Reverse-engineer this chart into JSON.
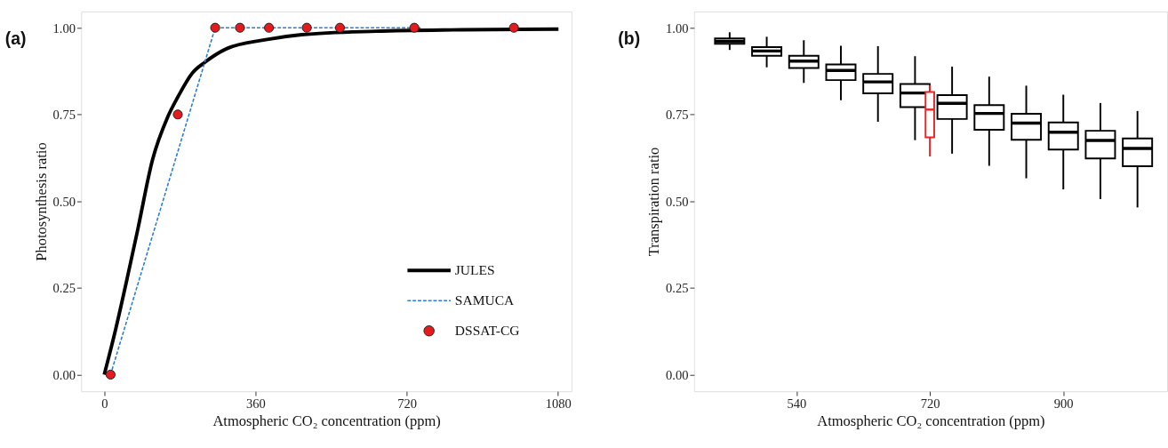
{
  "chart_data": [
    {
      "type": "line",
      "title": "(a)",
      "xlabel": "Atmospheric CO₂ concentration (ppm)",
      "ylabel": "Photosynthesis ratio",
      "xlim": [
        -55,
        1112
      ],
      "ylim": [
        -0.048,
        1.047
      ],
      "xticks": [
        0,
        360,
        720,
        1080
      ],
      "yticks": [
        {
          "value": 0,
          "label": "0.00"
        },
        {
          "value": 0.25,
          "label": "0.25"
        },
        {
          "value": 0.5,
          "label": "0.50"
        },
        {
          "value": 0.75,
          "label": "0.75"
        },
        {
          "value": 1,
          "label": "1.00"
        }
      ],
      "grid": false,
      "legend": "bottom right",
      "series": [
        {
          "name": "JULES",
          "type": "line",
          "line_style": "solid",
          "color": "#000000",
          "x": [
            0,
            27,
            55,
            80,
            115,
            150,
            175,
            210,
            239,
            292,
            381,
            470,
            647,
            850,
            1081
          ],
          "values": [
            0,
            0.13,
            0.28,
            0.42,
            0.62,
            0.74,
            0.8,
            0.87,
            0.9,
            0.94,
            0.965,
            0.98,
            0.99,
            0.994,
            0.996
          ]
        },
        {
          "name": "SAMUCA",
          "type": "line",
          "line_style": "dashed",
          "color": "#2b7bd0",
          "x": [
            15,
            264,
            753
          ],
          "values": [
            0,
            1,
            1
          ]
        },
        {
          "name": "DSSAT-CG",
          "type": "scatter",
          "marker": "circle",
          "color": "#e41a1c",
          "x": [
            15,
            175,
            264,
            323,
            392,
            482,
            561,
            738,
            975
          ],
          "values": [
            0,
            0.75,
            1,
            1,
            1,
            1,
            1,
            1,
            1
          ]
        }
      ]
    },
    {
      "type": "box",
      "title": "(b)",
      "xlabel": "Atmospheric CO₂ concentration (ppm)",
      "ylabel": "Transpiration ratio",
      "xlim": [
        402,
        1040
      ],
      "ylim": [
        -0.048,
        1.047
      ],
      "xticks": [
        540,
        720,
        900
      ],
      "yticks": [
        {
          "value": 0,
          "label": "0.00"
        },
        {
          "value": 0.25,
          "label": "0.25"
        },
        {
          "value": 0.5,
          "label": "0.50"
        },
        {
          "value": 0.75,
          "label": "0.75"
        },
        {
          "value": 1,
          "label": "1.00"
        }
      ],
      "grid": false,
      "legend": false,
      "series": [
        {
          "color": "#000000",
          "x": [
            450,
            500,
            550,
            600,
            650,
            700,
            750,
            800,
            850,
            900,
            950,
            1000
          ],
          "boxes": [
            {
              "low": 0.936,
              "q1": 0.954,
              "median": 0.961,
              "q3": 0.969,
              "high": 0.987
            },
            {
              "low": 0.886,
              "q1": 0.919,
              "median": 0.933,
              "q3": 0.944,
              "high": 0.974
            },
            {
              "low": 0.841,
              "q1": 0.884,
              "median": 0.904,
              "q3": 0.919,
              "high": 0.964
            },
            {
              "low": 0.791,
              "q1": 0.849,
              "median": 0.877,
              "q3": 0.894,
              "high": 0.948
            },
            {
              "low": 0.729,
              "q1": 0.811,
              "median": 0.844,
              "q3": 0.867,
              "high": 0.947
            },
            {
              "low": 0.676,
              "q1": 0.771,
              "median": 0.812,
              "q3": 0.838,
              "high": 0.918
            },
            {
              "low": 0.637,
              "q1": 0.737,
              "median": 0.782,
              "q3": 0.806,
              "high": 0.888
            },
            {
              "low": 0.602,
              "q1": 0.706,
              "median": 0.753,
              "q3": 0.777,
              "high": 0.859
            },
            {
              "low": 0.566,
              "q1": 0.677,
              "median": 0.725,
              "q3": 0.752,
              "high": 0.833
            },
            {
              "low": 0.534,
              "q1": 0.649,
              "median": 0.699,
              "q3": 0.727,
              "high": 0.807
            },
            {
              "low": 0.506,
              "q1": 0.623,
              "median": 0.675,
              "q3": 0.703,
              "high": 0.783
            },
            {
              "low": 0.482,
              "q1": 0.601,
              "median": 0.652,
              "q3": 0.681,
              "high": 0.76
            }
          ]
        },
        {
          "color": "#e8262a",
          "x": [
            720
          ],
          "boxes": [
            {
              "low": 0.629,
              "q1": 0.684,
              "median": 0.764,
              "q3": 0.815,
              "high": 0.834
            }
          ]
        }
      ]
    }
  ]
}
